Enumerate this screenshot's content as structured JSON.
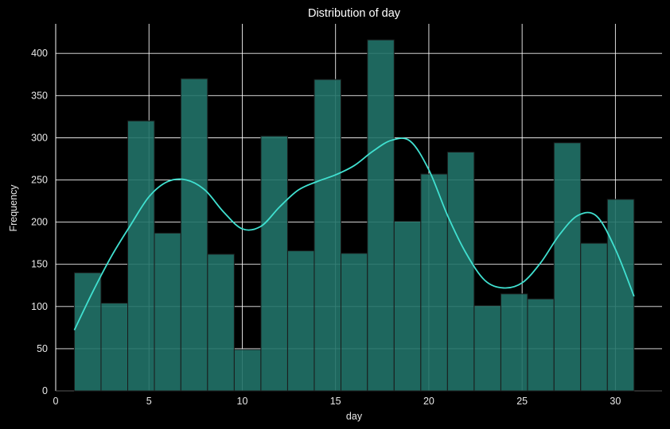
{
  "chart_data": {
    "type": "bar",
    "title": "Distribution of day",
    "xlabel": "day",
    "ylabel": "Frequency",
    "xlim": [
      0,
      32.5
    ],
    "ylim": [
      0,
      435
    ],
    "xticks": [
      0,
      5,
      10,
      15,
      20,
      25,
      30
    ],
    "yticks": [
      0,
      50,
      100,
      150,
      200,
      250,
      300,
      350,
      400
    ],
    "grid": true,
    "colors": {
      "background": "#000000",
      "bar_fill": "#217268",
      "bar_edge": "#1a1a1a",
      "kde_line": "#40e0d0",
      "grid": "#ffffff",
      "text": "#e8e8e8"
    },
    "bins": [
      {
        "start": 1.0,
        "end": 2.43,
        "count": 140
      },
      {
        "start": 2.43,
        "end": 3.86,
        "count": 104
      },
      {
        "start": 3.86,
        "end": 5.29,
        "count": 320
      },
      {
        "start": 5.29,
        "end": 6.71,
        "count": 187
      },
      {
        "start": 6.71,
        "end": 8.14,
        "count": 370
      },
      {
        "start": 8.14,
        "end": 9.57,
        "count": 162
      },
      {
        "start": 9.57,
        "end": 11.0,
        "count": 49
      },
      {
        "start": 11.0,
        "end": 12.43,
        "count": 302
      },
      {
        "start": 12.43,
        "end": 13.86,
        "count": 166
      },
      {
        "start": 13.86,
        "end": 15.29,
        "count": 369
      },
      {
        "start": 15.29,
        "end": 16.71,
        "count": 163
      },
      {
        "start": 16.71,
        "end": 18.14,
        "count": 416
      },
      {
        "start": 18.14,
        "end": 19.57,
        "count": 201
      },
      {
        "start": 19.57,
        "end": 21.0,
        "count": 257
      },
      {
        "start": 21.0,
        "end": 22.43,
        "count": 283
      },
      {
        "start": 22.43,
        "end": 23.86,
        "count": 101
      },
      {
        "start": 23.86,
        "end": 25.29,
        "count": 115
      },
      {
        "start": 25.29,
        "end": 26.71,
        "count": 109
      },
      {
        "start": 26.71,
        "end": 28.14,
        "count": 294
      },
      {
        "start": 28.14,
        "end": 29.57,
        "count": 175
      },
      {
        "start": 29.57,
        "end": 31.0,
        "count": 227
      }
    ],
    "kde": {
      "x": [
        1,
        2,
        3,
        4,
        5,
        6,
        7,
        8,
        9,
        10,
        11,
        12,
        13,
        14,
        15,
        16,
        17,
        18,
        19,
        20,
        21,
        22,
        23,
        24,
        25,
        26,
        27,
        28,
        29,
        30,
        31
      ],
      "y": [
        72,
        118,
        160,
        196,
        230,
        248,
        250,
        238,
        212,
        192,
        195,
        218,
        238,
        248,
        256,
        267,
        284,
        297,
        296,
        262,
        208,
        163,
        131,
        122,
        128,
        152,
        185,
        208,
        207,
        168,
        112
      ]
    }
  }
}
